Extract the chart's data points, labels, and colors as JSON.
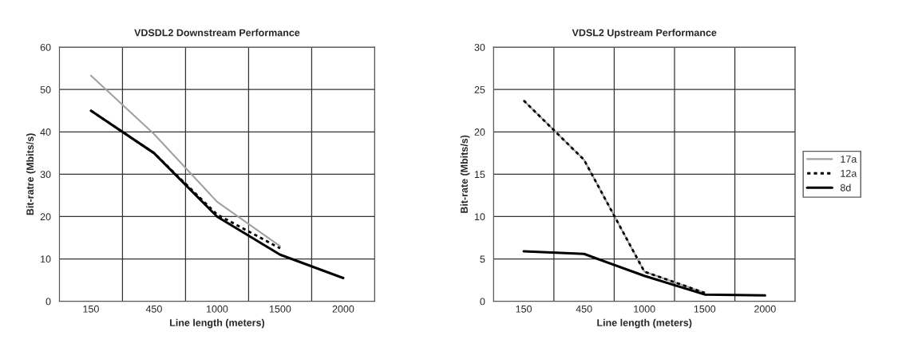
{
  "chart_data": [
    {
      "type": "line",
      "title": "VDSDL2 Downstream Performance",
      "xlabel": "Line length (meters)",
      "ylabel": "Bit-ratre (Mbits/s)",
      "categories": [
        "150",
        "450",
        "1000",
        "1500",
        "2000"
      ],
      "ylim": [
        0,
        60
      ],
      "yticks": [
        0,
        10,
        20,
        30,
        40,
        50,
        60
      ],
      "grid": true,
      "series": [
        {
          "color": "#a0a0a0",
          "line_style": "solid",
          "values": [
            53.3,
            39.5,
            23.5,
            13,
            null
          ]
        },
        {
          "color": "#000000",
          "line_style": "dotted",
          "values": [
            45,
            35,
            20.5,
            12.5,
            null
          ]
        },
        {
          "color": "#000000",
          "line_style": "solid",
          "values": [
            45,
            35,
            20,
            11,
            5.5
          ]
        }
      ]
    },
    {
      "type": "line",
      "title": "VDSL2 Upstream Performance",
      "xlabel": "Line length (meters)",
      "ylabel": "Bit-rate (Mbits/s)",
      "categories": [
        "150",
        "450",
        "1000",
        "1500",
        "2000"
      ],
      "ylim": [
        0,
        30
      ],
      "yticks": [
        0,
        5,
        10,
        15,
        20,
        25,
        30
      ],
      "grid": true,
      "legend": "right",
      "series": [
        {
          "name": "17a",
          "color": "#a0a0a0",
          "line_style": "solid",
          "values": [
            23.7,
            16.7,
            3.5,
            1.0,
            null
          ]
        },
        {
          "name": "12a",
          "color": "#000000",
          "line_style": "dotted",
          "values": [
            23.7,
            16.7,
            3.5,
            1.0,
            null
          ]
        },
        {
          "name": "8d",
          "color": "#000000",
          "line_style": "solid",
          "values": [
            5.9,
            5.6,
            3.0,
            0.8,
            0.7
          ]
        }
      ]
    }
  ]
}
